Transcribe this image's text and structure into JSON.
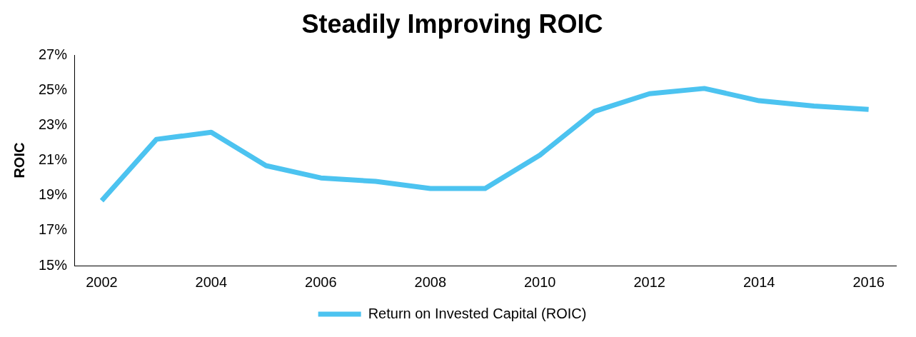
{
  "chart_data": {
    "type": "line",
    "title": "Steadily Improving ROIC",
    "ylabel": "ROIC",
    "categories": [
      "2002",
      null,
      "2004",
      null,
      "2006",
      null,
      "2008",
      null,
      "2010",
      null,
      "2012",
      null,
      "2014",
      null,
      "2016"
    ],
    "series": [
      {
        "name": "Return on Invested Capital (ROIC)",
        "color": "#4cc3f0",
        "values": [
          18.7,
          22.2,
          22.6,
          20.7,
          20.0,
          19.8,
          19.4,
          19.4,
          21.3,
          23.8,
          24.8,
          25.1,
          24.4,
          24.1,
          23.9
        ]
      }
    ],
    "ylim": [
      15,
      27
    ],
    "yticks": [
      {
        "value": 15,
        "label": "15%"
      },
      {
        "value": 17,
        "label": "17%"
      },
      {
        "value": 19,
        "label": "19%"
      },
      {
        "value": 21,
        "label": "21%"
      },
      {
        "value": 23,
        "label": "23%"
      },
      {
        "value": 25,
        "label": "25%"
      },
      {
        "value": 27,
        "label": "27%"
      }
    ],
    "grid": false,
    "legend": "bottom",
    "marker": "none",
    "line_style": "solid"
  }
}
